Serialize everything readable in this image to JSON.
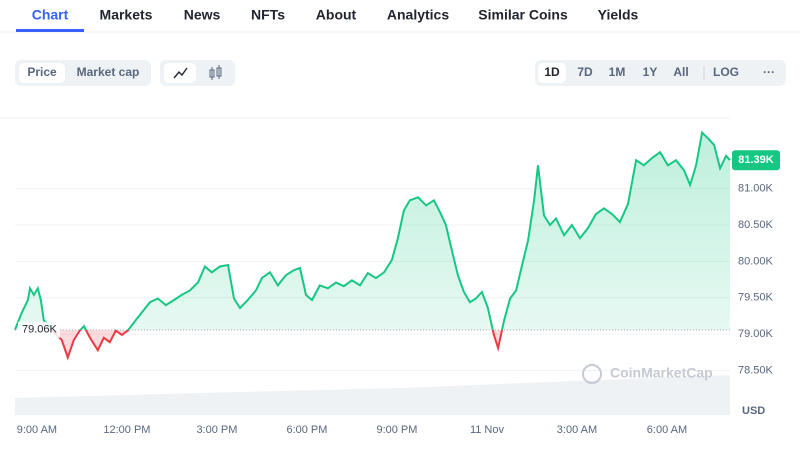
{
  "nav": {
    "tabs": [
      "Chart",
      "Markets",
      "News",
      "NFTs",
      "About",
      "Analytics",
      "Similar Coins",
      "Yields"
    ],
    "active": 0
  },
  "toolbar": {
    "metric": [
      "Price",
      "Market cap"
    ],
    "metric_active": 0,
    "ranges": [
      "1D",
      "7D",
      "1M",
      "1Y",
      "All"
    ],
    "range_active": 0,
    "log": "LOG"
  },
  "chart_data": {
    "type": "line",
    "watermark": "CoinMarketCap",
    "y_label": "USD",
    "x": [
      -0.73,
      -0.5,
      -0.3,
      -0.23,
      -0.1,
      0.03,
      0.13,
      0.23,
      0.37,
      0.6,
      0.83,
      1.03,
      1.23,
      1.43,
      1.57,
      1.77,
      2.03,
      2.23,
      2.43,
      2.63,
      2.83,
      3.03,
      3.23,
      3.5,
      3.77,
      4.03,
      4.3,
      4.57,
      4.83,
      5.1,
      5.37,
      5.6,
      5.83,
      6.1,
      6.37,
      6.57,
      6.77,
      7.03,
      7.3,
      7.5,
      7.77,
      8.03,
      8.3,
      8.57,
      8.77,
      8.97,
      9.17,
      9.43,
      9.7,
      9.97,
      10.23,
      10.5,
      10.77,
      11.03,
      11.3,
      11.57,
      11.83,
      12.03,
      12.23,
      12.43,
      12.7,
      12.97,
      13.23,
      13.43,
      13.63,
      13.83,
      14.03,
      14.23,
      14.43,
      14.63,
      14.83,
      15.03,
      15.23,
      15.37,
      15.57,
      15.77,
      15.97,
      16.17,
      16.37,
      16.57,
      16.7,
      16.9,
      17.1,
      17.3,
      17.57,
      17.83,
      18.1,
      18.37,
      18.63,
      18.9,
      19.17,
      19.43,
      19.7,
      19.97,
      20.23,
      20.5,
      20.77,
      21.03,
      21.3,
      21.57,
      21.77,
      21.97,
      22.17,
      22.37,
      22.57,
      22.77,
      22.97,
      23.1
    ],
    "series": [
      {
        "color": "#16c784",
        "below_color": "#ea3943",
        "values": [
          79060,
          79300,
          79470,
          79630,
          79540,
          79630,
          79470,
          79190,
          79140,
          79010,
          78920,
          78680,
          78920,
          79050,
          79110,
          78950,
          78780,
          78950,
          78890,
          79050,
          78990,
          79050,
          79160,
          79300,
          79440,
          79490,
          79400,
          79470,
          79540,
          79600,
          79710,
          79930,
          79850,
          79930,
          79950,
          79490,
          79360,
          79470,
          79600,
          79770,
          79850,
          79670,
          79810,
          79880,
          79910,
          79540,
          79470,
          79670,
          79630,
          79710,
          79660,
          79740,
          79670,
          79840,
          79770,
          79850,
          80020,
          80320,
          80700,
          80840,
          80880,
          80770,
          80840,
          80680,
          80500,
          80150,
          79810,
          79580,
          79440,
          79490,
          79580,
          79360,
          78990,
          78810,
          79190,
          79490,
          79600,
          79950,
          80290,
          80840,
          81320,
          80630,
          80500,
          80590,
          80360,
          80500,
          80320,
          80460,
          80650,
          80730,
          80650,
          80540,
          80790,
          81390,
          81320,
          81420,
          81500,
          81320,
          81390,
          81250,
          81050,
          81320,
          81770,
          81690,
          81600,
          81280,
          81450,
          81390
        ],
        "last_label": {
          "value": 81390,
          "label": "81.39K"
        }
      }
    ],
    "baseline": {
      "value": 79060,
      "label": "79.06K"
    },
    "xlim": [
      -0.73,
      23.1
    ],
    "xticks": [
      {
        "value": 0,
        "label": "9:00 AM"
      },
      {
        "value": 3,
        "label": "12:00 PM"
      },
      {
        "value": 6,
        "label": "3:00 PM"
      },
      {
        "value": 9,
        "label": "6:00 PM"
      },
      {
        "value": 12,
        "label": "9:00 PM"
      },
      {
        "value": 15,
        "label": "11 Nov"
      },
      {
        "value": 18,
        "label": "3:00 AM"
      },
      {
        "value": 21,
        "label": "6:00 AM"
      }
    ],
    "ylim": [
      77890,
      81970
    ],
    "yticks": [
      {
        "value": 78500,
        "label": "78.50K"
      },
      {
        "value": 79000,
        "label": "79.00K"
      },
      {
        "value": 79500,
        "label": "79.50K"
      },
      {
        "value": 80000,
        "label": "80.00K"
      },
      {
        "value": 80500,
        "label": "80.50K"
      },
      {
        "value": 81000,
        "label": "81.00K"
      }
    ],
    "grid": true
  }
}
